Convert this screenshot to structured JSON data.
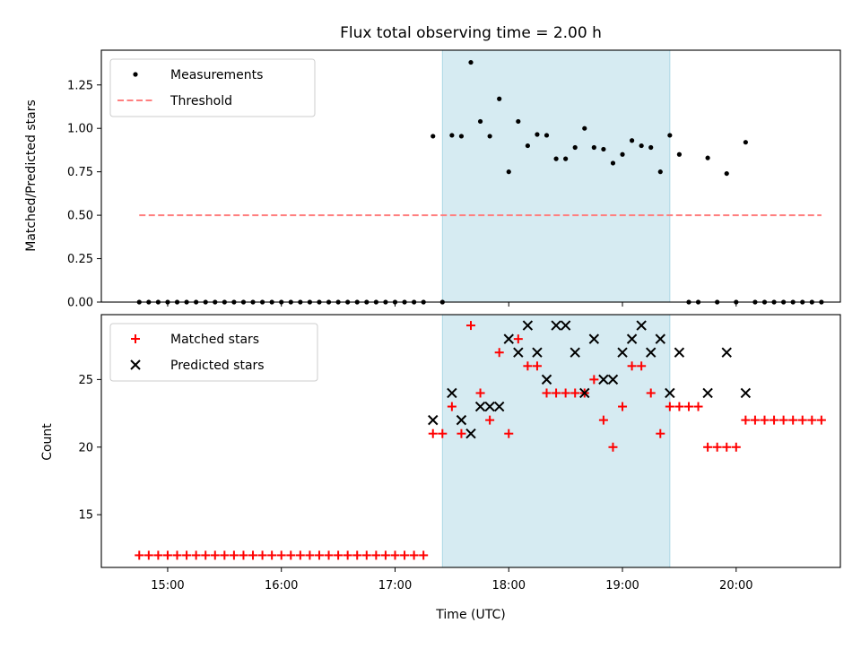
{
  "chart_data": [
    {
      "type": "scatter",
      "title": "Flux total observing time = 2.00 h",
      "xlabel": "",
      "ylabel": "Matched/Predicted stars",
      "xlim": [
        "14:25",
        "20:55"
      ],
      "ylim": [
        0,
        1.45
      ],
      "yticks": [
        "0.00",
        "0.25",
        "0.50",
        "0.75",
        "1.00",
        "1.25"
      ],
      "highlight_span": {
        "start": "17:25",
        "end": "19:25",
        "color": "#add8e6"
      },
      "legend": {
        "position": "top-left",
        "entries": [
          "Measurements",
          "Threshold"
        ]
      },
      "colors": {
        "measurements": "#000000",
        "threshold": "#ff7f7f",
        "span": "#add8e6"
      },
      "series": [
        {
          "name": "Measurements",
          "points": [
            [
              "14:45",
              0
            ],
            [
              "14:50",
              0
            ],
            [
              "14:55",
              0
            ],
            [
              "15:00",
              0
            ],
            [
              "15:05",
              0
            ],
            [
              "15:10",
              0
            ],
            [
              "15:15",
              0
            ],
            [
              "15:20",
              0
            ],
            [
              "15:25",
              0
            ],
            [
              "15:30",
              0
            ],
            [
              "15:35",
              0
            ],
            [
              "15:40",
              0
            ],
            [
              "15:45",
              0
            ],
            [
              "15:50",
              0
            ],
            [
              "15:55",
              0
            ],
            [
              "16:00",
              0
            ],
            [
              "16:05",
              0
            ],
            [
              "16:10",
              0
            ],
            [
              "16:15",
              0
            ],
            [
              "16:20",
              0
            ],
            [
              "16:25",
              0
            ],
            [
              "16:30",
              0
            ],
            [
              "16:35",
              0
            ],
            [
              "16:40",
              0
            ],
            [
              "16:45",
              0
            ],
            [
              "16:50",
              0
            ],
            [
              "16:55",
              0
            ],
            [
              "17:00",
              0
            ],
            [
              "17:05",
              0
            ],
            [
              "17:10",
              0
            ],
            [
              "17:15",
              0
            ],
            [
              "17:20",
              0.955
            ],
            [
              "17:25",
              0
            ],
            [
              "17:30",
              0.96
            ],
            [
              "17:35",
              0.955
            ],
            [
              "17:40",
              1.38
            ],
            [
              "17:45",
              1.04
            ],
            [
              "17:50",
              0.955
            ],
            [
              "17:55",
              1.17
            ],
            [
              "18:00",
              0.75
            ],
            [
              "18:05",
              1.04
            ],
            [
              "18:10",
              0.9
            ],
            [
              "18:15",
              0.965
            ],
            [
              "18:20",
              0.96
            ],
            [
              "18:25",
              0.825
            ],
            [
              "18:30",
              0.825
            ],
            [
              "18:35",
              0.89
            ],
            [
              "18:40",
              1.0
            ],
            [
              "18:45",
              0.89
            ],
            [
              "18:50",
              0.88
            ],
            [
              "18:55",
              0.8
            ],
            [
              "19:00",
              0.85
            ],
            [
              "19:05",
              0.93
            ],
            [
              "19:10",
              0.9
            ],
            [
              "19:15",
              0.89
            ],
            [
              "19:20",
              0.75
            ],
            [
              "19:25",
              0.96
            ],
            [
              "19:30",
              0.85
            ],
            [
              "19:35",
              0
            ],
            [
              "19:40",
              0
            ],
            [
              "19:45",
              0.83
            ],
            [
              "19:50",
              0
            ],
            [
              "19:55",
              0.74
            ],
            [
              "20:00",
              0
            ],
            [
              "20:05",
              0.92
            ],
            [
              "20:10",
              0
            ],
            [
              "20:15",
              0
            ],
            [
              "20:20",
              0
            ],
            [
              "20:25",
              0
            ],
            [
              "20:30",
              0
            ],
            [
              "20:35",
              0
            ],
            [
              "20:40",
              0
            ],
            [
              "20:45",
              0
            ]
          ]
        },
        {
          "name": "Threshold",
          "style": "dashed",
          "points": [
            [
              "14:45",
              0.5
            ],
            [
              "20:45",
              0.5
            ]
          ]
        }
      ]
    },
    {
      "type": "scatter",
      "title": "",
      "xlabel": "Time (UTC)",
      "ylabel": "Count",
      "xlim": [
        "14:25",
        "20:55"
      ],
      "ylim": [
        11.1,
        29.8
      ],
      "yticks": [
        "15",
        "20",
        "25"
      ],
      "xticks": [
        "15:00",
        "16:00",
        "17:00",
        "18:00",
        "19:00",
        "20:00"
      ],
      "highlight_span": {
        "start": "17:25",
        "end": "19:25",
        "color": "#add8e6"
      },
      "legend": {
        "position": "top-left",
        "entries": [
          "Matched stars",
          "Predicted stars"
        ]
      },
      "colors": {
        "matched": "#ff0000",
        "predicted": "#000000"
      },
      "series": [
        {
          "name": "Matched stars",
          "marker": "+",
          "points": [
            [
              "14:45",
              12
            ],
            [
              "14:50",
              12
            ],
            [
              "14:55",
              12
            ],
            [
              "15:00",
              12
            ],
            [
              "15:05",
              12
            ],
            [
              "15:10",
              12
            ],
            [
              "15:15",
              12
            ],
            [
              "15:20",
              12
            ],
            [
              "15:25",
              12
            ],
            [
              "15:30",
              12
            ],
            [
              "15:35",
              12
            ],
            [
              "15:40",
              12
            ],
            [
              "15:45",
              12
            ],
            [
              "15:50",
              12
            ],
            [
              "15:55",
              12
            ],
            [
              "16:00",
              12
            ],
            [
              "16:05",
              12
            ],
            [
              "16:10",
              12
            ],
            [
              "16:15",
              12
            ],
            [
              "16:20",
              12
            ],
            [
              "16:25",
              12
            ],
            [
              "16:30",
              12
            ],
            [
              "16:35",
              12
            ],
            [
              "16:40",
              12
            ],
            [
              "16:45",
              12
            ],
            [
              "16:50",
              12
            ],
            [
              "16:55",
              12
            ],
            [
              "17:00",
              12
            ],
            [
              "17:05",
              12
            ],
            [
              "17:10",
              12
            ],
            [
              "17:15",
              12
            ],
            [
              "17:20",
              21
            ],
            [
              "17:25",
              21
            ],
            [
              "17:30",
              23
            ],
            [
              "17:35",
              21
            ],
            [
              "17:40",
              29
            ],
            [
              "17:45",
              24
            ],
            [
              "17:50",
              22
            ],
            [
              "17:55",
              27
            ],
            [
              "18:00",
              21
            ],
            [
              "18:05",
              28
            ],
            [
              "18:10",
              26
            ],
            [
              "18:15",
              26
            ],
            [
              "18:20",
              24
            ],
            [
              "18:25",
              24
            ],
            [
              "18:30",
              24
            ],
            [
              "18:35",
              24
            ],
            [
              "18:40",
              24
            ],
            [
              "18:45",
              25
            ],
            [
              "18:50",
              22
            ],
            [
              "18:55",
              20
            ],
            [
              "19:00",
              23
            ],
            [
              "19:05",
              26
            ],
            [
              "19:10",
              26
            ],
            [
              "19:15",
              24
            ],
            [
              "19:20",
              21
            ],
            [
              "19:25",
              23
            ],
            [
              "19:30",
              23
            ],
            [
              "19:35",
              23
            ],
            [
              "19:40",
              23
            ],
            [
              "19:45",
              20
            ],
            [
              "19:50",
              20
            ],
            [
              "19:55",
              20
            ],
            [
              "20:00",
              20
            ],
            [
              "20:05",
              22
            ],
            [
              "20:10",
              22
            ],
            [
              "20:15",
              22
            ],
            [
              "20:20",
              22
            ],
            [
              "20:25",
              22
            ],
            [
              "20:30",
              22
            ],
            [
              "20:35",
              22
            ],
            [
              "20:40",
              22
            ],
            [
              "20:45",
              22
            ]
          ]
        },
        {
          "name": "Predicted stars",
          "marker": "x",
          "points": [
            [
              "17:20",
              22
            ],
            [
              "17:30",
              24
            ],
            [
              "17:35",
              22
            ],
            [
              "17:40",
              21
            ],
            [
              "17:45",
              23
            ],
            [
              "17:50",
              23
            ],
            [
              "17:55",
              23
            ],
            [
              "18:00",
              28
            ],
            [
              "18:05",
              27
            ],
            [
              "18:10",
              29
            ],
            [
              "18:15",
              27
            ],
            [
              "18:20",
              25
            ],
            [
              "18:25",
              29
            ],
            [
              "18:30",
              29
            ],
            [
              "18:35",
              27
            ],
            [
              "18:40",
              24
            ],
            [
              "18:45",
              28
            ],
            [
              "18:50",
              25
            ],
            [
              "18:55",
              25
            ],
            [
              "19:00",
              27
            ],
            [
              "19:05",
              28
            ],
            [
              "19:10",
              29
            ],
            [
              "19:15",
              27
            ],
            [
              "19:20",
              28
            ],
            [
              "19:25",
              24
            ],
            [
              "19:30",
              27
            ],
            [
              "19:45",
              24
            ],
            [
              "19:55",
              27
            ],
            [
              "20:05",
              24
            ]
          ]
        }
      ]
    }
  ]
}
